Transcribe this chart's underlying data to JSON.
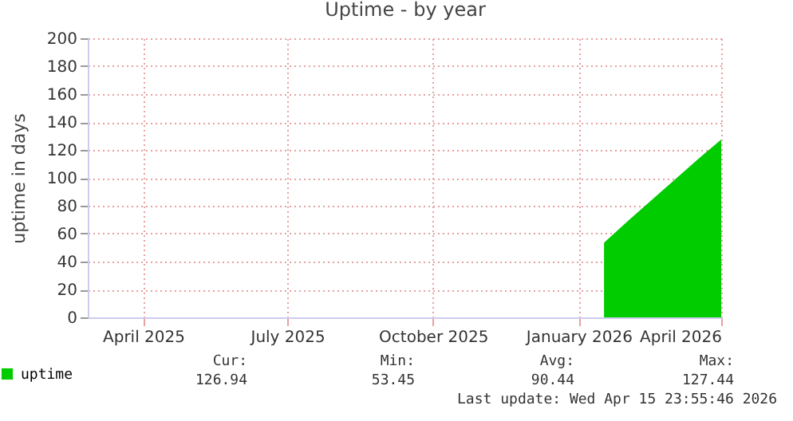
{
  "chart_data": {
    "type": "area",
    "title": "Uptime - by year",
    "ylabel": "uptime in days",
    "x": [
      "2026-01-31",
      "2026-02-15",
      "2026-03-01",
      "2026-03-15",
      "2026-04-01",
      "2026-04-15"
    ],
    "series": [
      {
        "name": "uptime",
        "color": "#00cc00",
        "values": [
          53.5,
          69,
          83,
          97,
          114,
          127.5
        ]
      }
    ],
    "xlim": [
      "2025-03-11",
      "2026-04-16"
    ],
    "xticks": [
      {
        "value": "2025-04-15",
        "label": "April 2025"
      },
      {
        "value": "2025-07-15",
        "label": "July 2025"
      },
      {
        "value": "2025-10-15",
        "label": "October 2025"
      },
      {
        "value": "2026-01-15",
        "label": "January 2026"
      },
      {
        "value": "2026-04-15",
        "label": "April 2026"
      }
    ],
    "ylim": [
      0,
      200
    ],
    "yticks": [
      0,
      20,
      40,
      60,
      80,
      100,
      120,
      140,
      160,
      180,
      200
    ],
    "grid": true,
    "legend": "bottom left",
    "annotations": [
      "Cur:",
      "Min:",
      "Avg:",
      "Max:",
      "126.94",
      "53.45",
      "90.44",
      "127.44",
      "Last update: Wed Apr 15 23:55:46 2026"
    ]
  }
}
